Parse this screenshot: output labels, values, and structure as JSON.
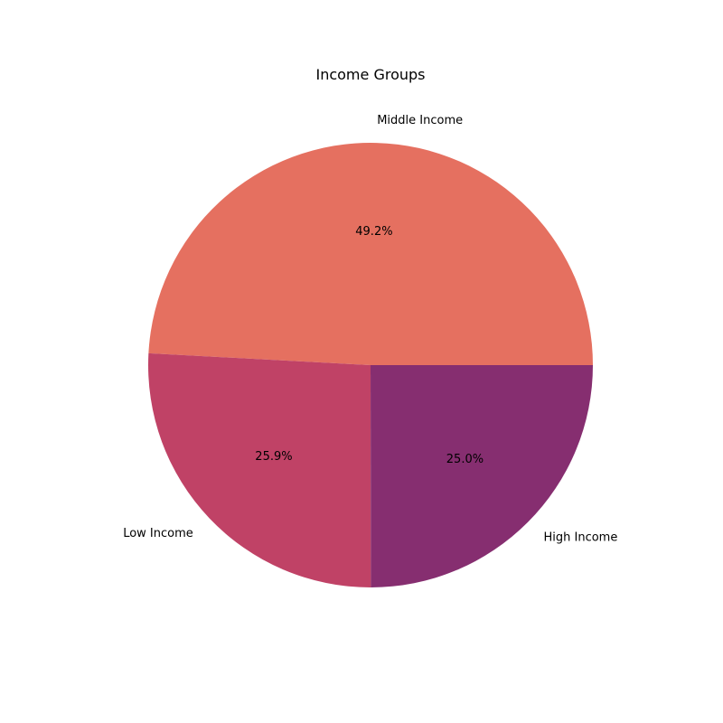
{
  "chart_data": {
    "type": "pie",
    "title": "Income Groups",
    "start_angle_deg": 0,
    "direction": "counterclockwise",
    "slices": [
      {
        "label": "Middle Income",
        "value": 49.2,
        "pct_label": "49.2%",
        "color": "#e57060"
      },
      {
        "label": "Low Income",
        "value": 25.9,
        "pct_label": "25.9%",
        "color": "#c04266"
      },
      {
        "label": "High Income",
        "value": 25.0,
        "pct_label": "25.0%",
        "color": "#862e70"
      }
    ]
  }
}
